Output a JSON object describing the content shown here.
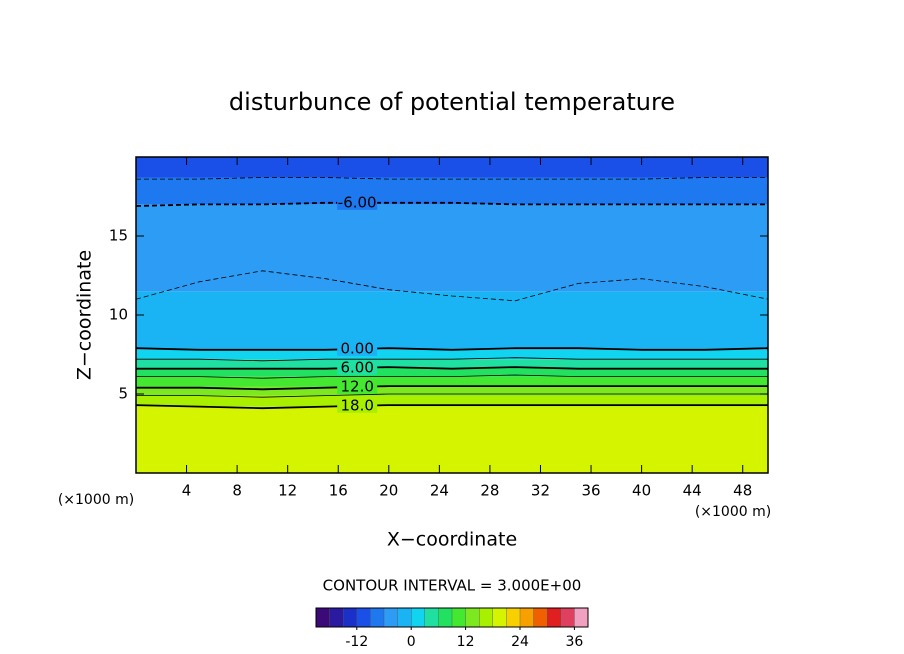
{
  "chart_data": {
    "type": "contour",
    "title": "disturbunce of potential temperature",
    "xlabel": "X−coordinate",
    "ylabel": "Z−coordinate",
    "x_unit": "(×1000 m)",
    "interval_note": "CONTOUR INTERVAL = 3.000E+00",
    "xlim": [
      0,
      50
    ],
    "ylim": [
      0,
      20
    ],
    "xticks": [
      4,
      8,
      12,
      16,
      20,
      24,
      28,
      32,
      36,
      40,
      44,
      48
    ],
    "yticks": [
      5,
      10,
      15
    ],
    "x": [
      0,
      5,
      10,
      15,
      20,
      25,
      30,
      35,
      40,
      45,
      50
    ],
    "fill_bands": [
      {
        "z": [
          0,
          4.2
        ],
        "value": 19.5
      },
      {
        "z": [
          4.2,
          4.9
        ],
        "value": 16.5
      },
      {
        "z": [
          4.9,
          5.45
        ],
        "value": 13.5
      },
      {
        "z": [
          5.45,
          6.1
        ],
        "value": 10.5
      },
      {
        "z": [
          6.1,
          6.65
        ],
        "value": 7.5
      },
      {
        "z": [
          6.65,
          7.2
        ],
        "value": 4.5
      },
      {
        "z": [
          7.2,
          7.8
        ],
        "value": 1.5
      },
      {
        "z": [
          7.8,
          11.5
        ],
        "value": -1.5
      },
      {
        "z": [
          11.5,
          17
        ],
        "value": -4.5
      },
      {
        "z": [
          17,
          18.7
        ],
        "value": -7.5
      },
      {
        "z": [
          18.7,
          20
        ],
        "value": -10.5
      }
    ],
    "contours": [
      {
        "level": -9,
        "z": [
          18.6,
          18.6,
          18.7,
          18.7,
          18.6,
          18.6,
          18.6,
          18.6,
          18.6,
          18.7,
          18.7
        ]
      },
      {
        "level": -6,
        "label": "-6.00",
        "z": [
          16.9,
          17,
          17,
          17.1,
          17.1,
          17.1,
          17,
          17,
          17,
          17,
          17
        ]
      },
      {
        "level": -3,
        "z": [
          11,
          12.1,
          12.8,
          12.3,
          11.6,
          11.2,
          10.9,
          12,
          12.3,
          11.8,
          11
        ]
      },
      {
        "level": 0,
        "label": "0.00",
        "z": [
          7.9,
          7.8,
          7.8,
          7.8,
          7.9,
          7.8,
          7.9,
          7.9,
          7.8,
          7.8,
          7.9
        ]
      },
      {
        "level": 3,
        "z": [
          7.2,
          7.2,
          7.1,
          7.2,
          7.2,
          7.2,
          7.3,
          7.2,
          7.2,
          7.2,
          7.2
        ]
      },
      {
        "level": 6,
        "label": "6.00",
        "z": [
          6.6,
          6.6,
          6.6,
          6.6,
          6.7,
          6.6,
          6.7,
          6.6,
          6.6,
          6.6,
          6.6
        ]
      },
      {
        "level": 9,
        "z": [
          6.1,
          6.1,
          6.0,
          6.1,
          6.1,
          6.1,
          6.2,
          6.1,
          6.1,
          6.1,
          6.1
        ]
      },
      {
        "level": 12,
        "label": "12.0",
        "z": [
          5.4,
          5.4,
          5.3,
          5.4,
          5.5,
          5.5,
          5.5,
          5.5,
          5.5,
          5.5,
          5.5
        ]
      },
      {
        "level": 15,
        "z": [
          4.9,
          4.9,
          4.8,
          4.9,
          5.0,
          5.0,
          5.0,
          5.0,
          5.0,
          5.0,
          5.0
        ]
      },
      {
        "level": 18,
        "label": "18.0",
        "z": [
          4.3,
          4.2,
          4.1,
          4.2,
          4.3,
          4.3,
          4.3,
          4.3,
          4.3,
          4.3,
          4.3
        ]
      }
    ],
    "colorbar": {
      "lim": [
        -21,
        39
      ],
      "ticks": [
        -12,
        0,
        12,
        24,
        36
      ],
      "colors": [
        "#3c0a78",
        "#2a1aa0",
        "#1a30c8",
        "#1a50e8",
        "#1e78f0",
        "#2d9cf5",
        "#1ab4f5",
        "#10d4f0",
        "#1fe0a0",
        "#22e060",
        "#44e830",
        "#7ce820",
        "#a8f000",
        "#d4f400",
        "#f8d000",
        "#f8a000",
        "#f06000",
        "#e02020",
        "#e04060",
        "#f0a0c0"
      ]
    }
  }
}
